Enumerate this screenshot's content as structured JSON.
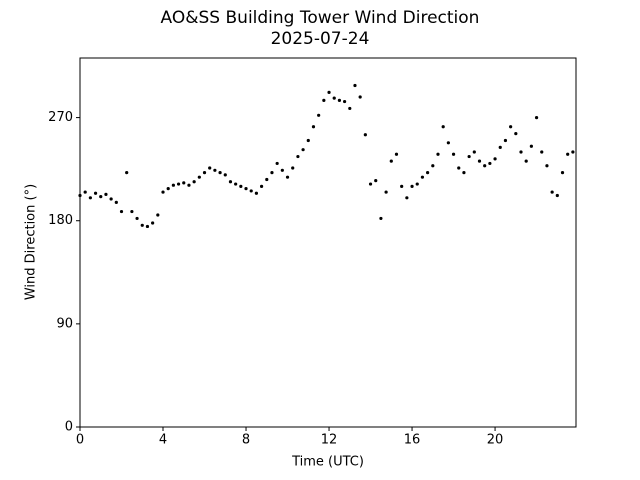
{
  "chart_data": {
    "type": "scatter",
    "title": "AO&SS Building Tower Wind Direction",
    "subtitle": "2025-07-24",
    "x_label": "Time (UTC)",
    "y_label": "Wind Direction (°)",
    "color": "#000000",
    "xlim": [
      0,
      23.9
    ],
    "ylim": [
      0,
      322
    ],
    "xticks": [
      0,
      4,
      8,
      12,
      16,
      20
    ],
    "yticks": [
      0,
      90,
      180,
      270
    ],
    "x": [
      0,
      0.25,
      0.5,
      0.75,
      1,
      1.25,
      1.5,
      1.75,
      2,
      2.25,
      2.5,
      2.75,
      3,
      3.25,
      3.5,
      3.75,
      4,
      4.25,
      4.5,
      4.75,
      5,
      5.25,
      5.5,
      5.75,
      6,
      6.25,
      6.5,
      6.75,
      7,
      7.25,
      7.5,
      7.75,
      8,
      8.25,
      8.5,
      8.75,
      9,
      9.25,
      9.5,
      9.75,
      10,
      10.25,
      10.5,
      10.75,
      11,
      11.25,
      11.5,
      11.75,
      12,
      12.25,
      12.5,
      12.75,
      13,
      13.25,
      13.5,
      13.75,
      14,
      14.25,
      14.5,
      14.75,
      15,
      15.25,
      15.5,
      15.75,
      16,
      16.25,
      16.5,
      16.75,
      17,
      17.25,
      17.5,
      17.75,
      18,
      18.25,
      18.5,
      18.75,
      19,
      19.25,
      19.5,
      19.75,
      20,
      20.25,
      20.5,
      20.75,
      21,
      21.25,
      21.5,
      21.75,
      22,
      22.25,
      22.5,
      22.75,
      23,
      23.25,
      23.5,
      23.75
    ],
    "values": [
      202,
      205,
      200,
      204,
      201,
      203,
      199,
      196,
      188,
      222,
      188,
      182,
      176,
      175,
      178,
      185,
      205,
      208,
      211,
      212,
      213,
      211,
      214,
      218,
      222,
      226,
      224,
      222,
      220,
      214,
      212,
      210,
      208,
      206,
      204,
      210,
      216,
      222,
      230,
      224,
      218,
      226,
      236,
      242,
      250,
      262,
      272,
      285,
      292,
      287,
      285,
      284,
      278,
      298,
      288,
      255,
      212,
      215,
      182,
      205,
      232,
      238,
      210,
      200,
      210,
      212,
      218,
      222,
      228,
      238,
      262,
      248,
      238,
      226,
      222,
      236,
      240,
      232,
      228,
      230,
      234,
      244,
      250,
      262,
      256,
      240,
      232,
      245,
      270,
      240,
      228,
      205,
      202,
      222,
      238,
      240
    ]
  }
}
